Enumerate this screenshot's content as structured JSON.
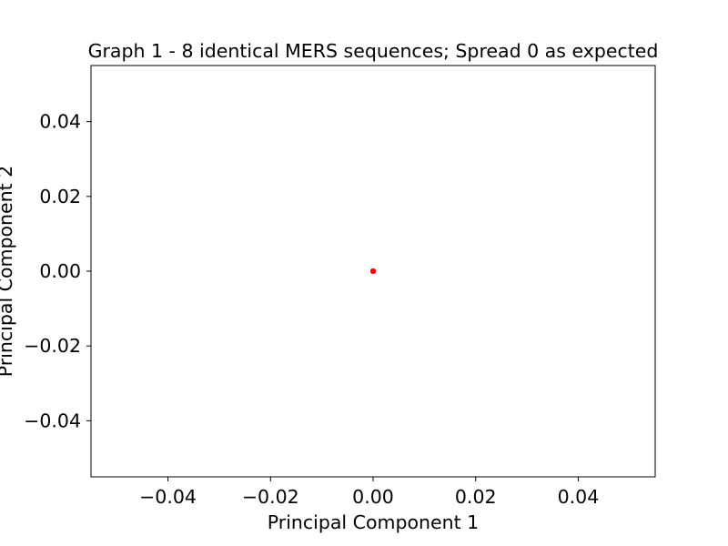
{
  "chart_data": {
    "type": "scatter",
    "title": "Graph 1 - 8 identical MERS sequences; Spread 0 as expected",
    "xlabel": "Principal Component 1",
    "ylabel": "Principal Component 2",
    "xlim": [
      -0.055,
      0.055
    ],
    "ylim": [
      -0.055,
      0.055
    ],
    "x_ticks": [
      -0.04,
      -0.02,
      0.0,
      0.02,
      0.04
    ],
    "y_ticks": [
      -0.04,
      -0.02,
      0.0,
      0.02,
      0.04
    ],
    "x_tick_labels": [
      "−0.04",
      "−0.02",
      "0.00",
      "0.02",
      "0.04"
    ],
    "y_tick_labels": [
      "−0.04",
      "−0.02",
      "0.00",
      "0.02",
      "0.04"
    ],
    "grid": false,
    "marker_color": "#ff0000",
    "points": [
      {
        "x": 0,
        "y": 0
      },
      {
        "x": 0,
        "y": 0
      },
      {
        "x": 0,
        "y": 0
      },
      {
        "x": 0,
        "y": 0
      },
      {
        "x": 0,
        "y": 0
      },
      {
        "x": 0,
        "y": 0
      },
      {
        "x": 0,
        "y": 0
      },
      {
        "x": 0,
        "y": 0
      }
    ]
  }
}
